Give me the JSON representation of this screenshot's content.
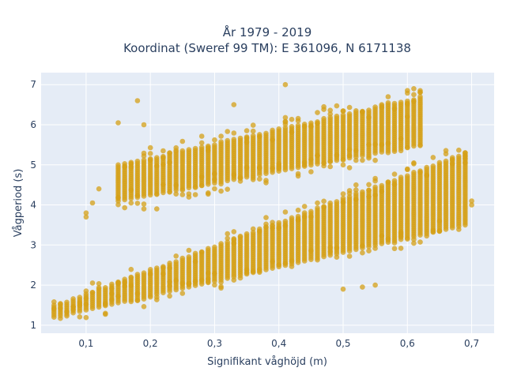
{
  "chart_data": {
    "type": "scatter",
    "title_line1": "År 1979 - 2019",
    "title_line2": "Koordinat (Sweref 99 TM): E 361096, N 6171138",
    "xlabel": "Signifikant våghöjd (m)",
    "ylabel": "Vågperiod (s)",
    "xlim": [
      0.03,
      0.735
    ],
    "ylim": [
      0.8,
      7.3
    ],
    "x_ticks": [
      {
        "value": 0.1,
        "label": "0,1"
      },
      {
        "value": 0.2,
        "label": "0,2"
      },
      {
        "value": 0.3,
        "label": "0,3"
      },
      {
        "value": 0.4,
        "label": "0,4"
      },
      {
        "value": 0.5,
        "label": "0,5"
      },
      {
        "value": 0.6,
        "label": "0,6"
      },
      {
        "value": 0.7,
        "label": "0,7"
      }
    ],
    "y_ticks": [
      {
        "value": 1,
        "label": "1"
      },
      {
        "value": 2,
        "label": "2"
      },
      {
        "value": 3,
        "label": "3"
      },
      {
        "value": 4,
        "label": "4"
      },
      {
        "value": 5,
        "label": "5"
      },
      {
        "value": 6,
        "label": "6"
      },
      {
        "value": 7,
        "label": "7"
      }
    ],
    "marker_color": "#D4A017",
    "plot_bg": "#E5ECF6",
    "grid": true,
    "x_step": 0.01,
    "upper_band": {
      "x_start": 0.15,
      "x_end": 0.62,
      "y_low": [
        4.1,
        5.5
      ],
      "y_high": [
        5.0,
        6.7
      ]
    },
    "lower_band": {
      "x_start": 0.05,
      "x_end": 0.69,
      "y_low": [
        1.2,
        3.5
      ],
      "y_high": [
        1.5,
        5.3
      ]
    },
    "outliers": [
      {
        "x": 0.41,
        "y": 7.0
      },
      {
        "x": 0.18,
        "y": 6.6
      },
      {
        "x": 0.61,
        "y": 6.9
      },
      {
        "x": 0.62,
        "y": 6.85
      },
      {
        "x": 0.33,
        "y": 6.5
      },
      {
        "x": 0.47,
        "y": 6.45
      },
      {
        "x": 0.15,
        "y": 6.05
      },
      {
        "x": 0.19,
        "y": 6.0
      },
      {
        "x": 0.1,
        "y": 3.8
      },
      {
        "x": 0.1,
        "y": 3.7
      },
      {
        "x": 0.11,
        "y": 4.05
      },
      {
        "x": 0.12,
        "y": 4.4
      },
      {
        "x": 0.19,
        "y": 3.9
      },
      {
        "x": 0.21,
        "y": 3.9
      },
      {
        "x": 0.55,
        "y": 2.0
      },
      {
        "x": 0.53,
        "y": 1.95
      },
      {
        "x": 0.5,
        "y": 1.9
      },
      {
        "x": 0.6,
        "y": 6.2
      },
      {
        "x": 0.56,
        "y": 6.5
      },
      {
        "x": 0.7,
        "y": 4.0
      },
      {
        "x": 0.7,
        "y": 4.1
      },
      {
        "x": 0.69,
        "y": 5.05
      }
    ]
  }
}
